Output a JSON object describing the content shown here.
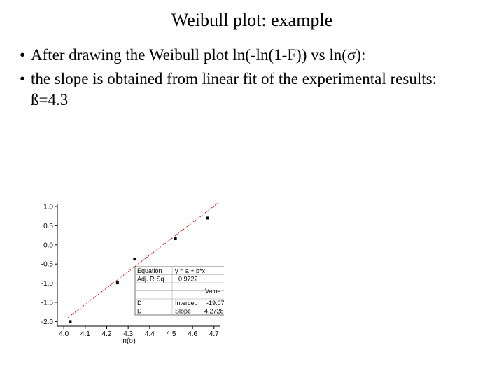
{
  "slide": {
    "title": "Weibull plot: example",
    "bullets": [
      {
        "text": "After drawing the Weibull plot ln(-ln(1-F)) vs ln(σ):"
      },
      {
        "text": "the slope is obtained from linear fit of the experimental results:",
        "continuation": "ß=4.3"
      }
    ],
    "bullet_glyph": "•"
  },
  "chart_data": {
    "type": "scatter",
    "xlabel": "ln(σ)",
    "ylabel": "",
    "xlim": [
      3.97,
      4.73
    ],
    "ylim": [
      -2.12,
      1.0
    ],
    "xticks": [
      "4.0",
      "4.1",
      "4.2",
      "4.3",
      "4.4",
      "4.5",
      "4.6",
      "4.7"
    ],
    "yticks": [
      "1.0",
      "0.5",
      "0.0",
      "-0.5",
      "-1.0",
      "-1.5",
      "-2.0"
    ],
    "points": [
      {
        "x": 4.03,
        "y": -2.0
      },
      {
        "x": 4.25,
        "y": -0.99
      },
      {
        "x": 4.33,
        "y": -0.37
      },
      {
        "x": 4.52,
        "y": 0.16
      },
      {
        "x": 4.67,
        "y": 0.7
      }
    ],
    "fit": {
      "intercept": -19.07,
      "slope": 4.2728
    },
    "series_color": "#000000",
    "fit_color": "#cc0000",
    "fit_table": {
      "equation_label": "Equation",
      "equation_value": "y = a + b*x",
      "rsq_label": "Adj. R-Sq",
      "rsq_value": "0.9722",
      "value_header": "Value",
      "rows": [
        {
          "dataset": "D",
          "param": "Intercep",
          "value": "-19.07"
        },
        {
          "dataset": "D",
          "param": "Slope",
          "value": "4.2728"
        }
      ]
    }
  }
}
